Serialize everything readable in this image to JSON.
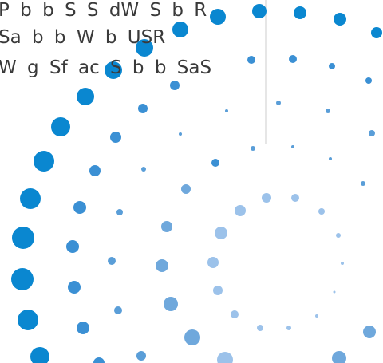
{
  "lines": [
    "P b b S S dW S b R",
    "Sa b b W b USR",
    "W g Sf ac S b b SaS"
  ]
}
